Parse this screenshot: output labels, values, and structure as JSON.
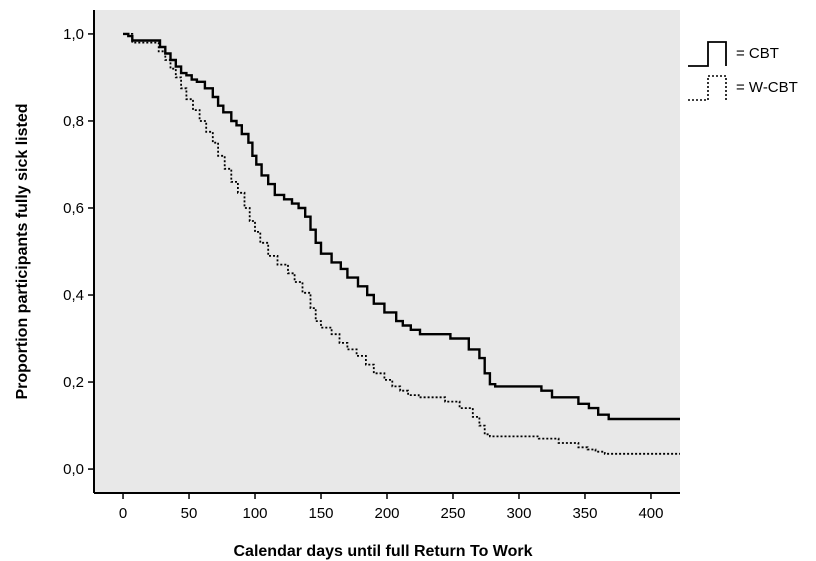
{
  "chart_data": {
    "type": "line",
    "xlabel": "Calendar days until full Return To Work",
    "ylabel": "Proportion participants fully sick listed",
    "xlim": [
      -22,
      422
    ],
    "ylim": [
      -0.055,
      1.055
    ],
    "xticks": [
      0,
      50,
      100,
      150,
      200,
      250,
      300,
      350,
      400
    ],
    "xtick_labels": [
      "0",
      "50",
      "100",
      "150",
      "200",
      "250",
      "300",
      "350",
      "400"
    ],
    "yticks": [
      0.0,
      0.2,
      0.4,
      0.6,
      0.8,
      1.0
    ],
    "ytick_labels": [
      "0,0",
      "0,2",
      "0,4",
      "0,6",
      "0,8",
      "1,0"
    ],
    "grid": false,
    "step": true,
    "background": "#e8e8e8",
    "legend_position": "top-right",
    "series": [
      {
        "name": "CBT",
        "legend_label": "= CBT",
        "line_style": "solid",
        "color": "#000000",
        "x": [
          0,
          4,
          7,
          28,
          32,
          36,
          40,
          44,
          48,
          52,
          56,
          62,
          68,
          72,
          76,
          82,
          86,
          90,
          95,
          98,
          101,
          105,
          110,
          115,
          122,
          128,
          133,
          138,
          142,
          146,
          150,
          158,
          165,
          170,
          178,
          185,
          190,
          198,
          207,
          212,
          218,
          225,
          248,
          262,
          270,
          274,
          278,
          282,
          298,
          317,
          325,
          345,
          353,
          360,
          368,
          422
        ],
        "y": [
          1.0,
          0.995,
          0.985,
          0.97,
          0.955,
          0.94,
          0.925,
          0.91,
          0.905,
          0.895,
          0.89,
          0.875,
          0.855,
          0.835,
          0.82,
          0.8,
          0.79,
          0.77,
          0.75,
          0.72,
          0.7,
          0.675,
          0.655,
          0.63,
          0.62,
          0.61,
          0.6,
          0.58,
          0.55,
          0.52,
          0.495,
          0.475,
          0.46,
          0.44,
          0.42,
          0.4,
          0.38,
          0.36,
          0.34,
          0.33,
          0.32,
          0.31,
          0.3,
          0.275,
          0.255,
          0.22,
          0.195,
          0.19,
          0.19,
          0.18,
          0.165,
          0.15,
          0.14,
          0.125,
          0.115,
          0.115
        ]
      },
      {
        "name": "W-CBT",
        "legend_label": "= W-CBT",
        "line_style": "dotted",
        "color": "#000000",
        "x": [
          0,
          7,
          27,
          32,
          36,
          40,
          44,
          48,
          53,
          58,
          63,
          68,
          72,
          77,
          82,
          87,
          92,
          96,
          100,
          104,
          110,
          117,
          125,
          130,
          136,
          142,
          146,
          150,
          158,
          164,
          170,
          177,
          184,
          190,
          198,
          204,
          210,
          216,
          224,
          244,
          255,
          265,
          270,
          274,
          278,
          300,
          315,
          330,
          345,
          352,
          358,
          365,
          422
        ],
        "y": [
          1.0,
          0.98,
          0.96,
          0.94,
          0.92,
          0.9,
          0.875,
          0.85,
          0.825,
          0.8,
          0.775,
          0.75,
          0.72,
          0.69,
          0.66,
          0.635,
          0.6,
          0.57,
          0.545,
          0.52,
          0.49,
          0.47,
          0.45,
          0.43,
          0.405,
          0.37,
          0.34,
          0.325,
          0.31,
          0.29,
          0.275,
          0.26,
          0.24,
          0.22,
          0.205,
          0.19,
          0.18,
          0.17,
          0.165,
          0.155,
          0.14,
          0.12,
          0.1,
          0.08,
          0.075,
          0.075,
          0.07,
          0.06,
          0.05,
          0.045,
          0.04,
          0.035,
          0.035
        ]
      }
    ]
  }
}
